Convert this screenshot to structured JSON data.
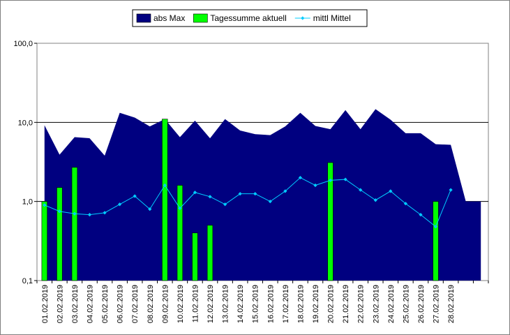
{
  "chart_data": {
    "type": "area",
    "scale": "log",
    "ylim": [
      0.1,
      100
    ],
    "y_ticks": [
      {
        "value": 100,
        "label": "100,0"
      },
      {
        "value": 10,
        "label": "10,0"
      },
      {
        "value": 1,
        "label": "1,0"
      },
      {
        "value": 0.1,
        "label": "0,1"
      }
    ],
    "grid": true,
    "legend_position": "top-center",
    "categories": [
      "01.02.2019",
      "02.02.2019",
      "03.02.2019",
      "04.02.2019",
      "05.02.2019",
      "06.02.2019",
      "07.02.2019",
      "08.02.2019",
      "09.02.2019",
      "10.02.2019",
      "11.02.2019",
      "12.02.2019",
      "13.02.2019",
      "14.02.2019",
      "15.02.2019",
      "16.02.2019",
      "17.02.2019",
      "18.02.2019",
      "19.02.2019",
      "20.02.2019",
      "21.02.2019",
      "22.02.2019",
      "23.02.2019",
      "24.02.2019",
      "25.02.2019",
      "26.02.2019",
      "27.02.2019",
      "28.02.2019",
      "",
      ""
    ],
    "series": [
      {
        "name": "abs Max",
        "kind": "area",
        "color": "#000080",
        "values": [
          9.2,
          3.9,
          6.5,
          6.3,
          3.8,
          13.2,
          11.5,
          8.9,
          11.0,
          6.5,
          10.5,
          6.3,
          11.0,
          7.9,
          7.1,
          6.9,
          8.9,
          13.2,
          9.0,
          8.2,
          14.3,
          8.2,
          14.7,
          10.8,
          7.3,
          7.3,
          5.3,
          5.2,
          1.0,
          1.0
        ]
      },
      {
        "name": "Tagessumme aktuell",
        "kind": "bar",
        "color": "#00ff00",
        "values": [
          1.0,
          1.5,
          2.7,
          null,
          null,
          null,
          null,
          null,
          11.0,
          1.6,
          0.4,
          0.5,
          null,
          null,
          null,
          null,
          null,
          null,
          null,
          3.1,
          null,
          null,
          null,
          null,
          null,
          null,
          1.0,
          null,
          null,
          null
        ]
      },
      {
        "name": "mittl Mittel",
        "kind": "line",
        "color": "#00ccff",
        "values": [
          0.9,
          0.75,
          0.7,
          0.68,
          0.72,
          0.92,
          1.17,
          0.8,
          1.6,
          0.82,
          1.3,
          1.15,
          0.92,
          1.25,
          1.25,
          1.0,
          1.35,
          2.0,
          1.6,
          1.85,
          1.9,
          1.4,
          1.04,
          1.35,
          0.94,
          0.68,
          0.48,
          1.4,
          null,
          null
        ]
      }
    ]
  }
}
